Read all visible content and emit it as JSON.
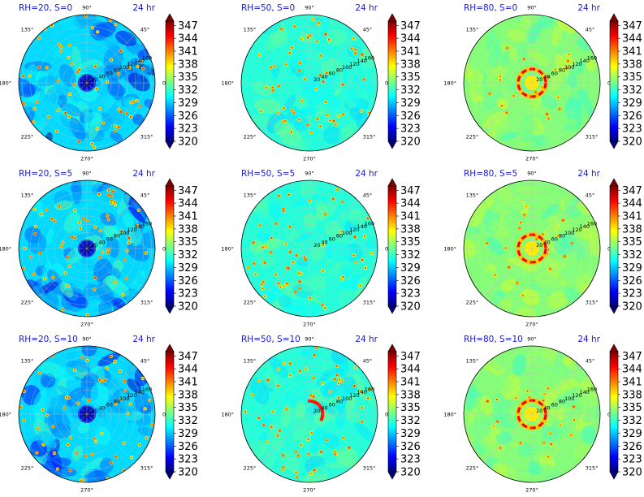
{
  "chart_data": [
    {
      "type": "heatmap",
      "projection": "polar",
      "title": "RH=20, S=0",
      "time_label": "24 hr",
      "rh": 20,
      "s": 0,
      "center_anomaly": "cold"
    },
    {
      "type": "heatmap",
      "projection": "polar",
      "title": "RH=50, S=0",
      "time_label": "24 hr",
      "rh": 50,
      "s": 0,
      "center_anomaly": "none"
    },
    {
      "type": "heatmap",
      "projection": "polar",
      "title": "RH=80, S=0",
      "time_label": "24 hr",
      "rh": 80,
      "s": 0,
      "center_anomaly": "warm ring"
    },
    {
      "type": "heatmap",
      "projection": "polar",
      "title": "RH=20, S=5",
      "time_label": "24 hr",
      "rh": 20,
      "s": 5,
      "center_anomaly": "cold"
    },
    {
      "type": "heatmap",
      "projection": "polar",
      "title": "RH=50, S=5",
      "time_label": "24 hr",
      "rh": 50,
      "s": 5,
      "center_anomaly": "none"
    },
    {
      "type": "heatmap",
      "projection": "polar",
      "title": "RH=80, S=5",
      "time_label": "24 hr",
      "rh": 80,
      "s": 5,
      "center_anomaly": "warm ring"
    },
    {
      "type": "heatmap",
      "projection": "polar",
      "title": "RH=20, S=10",
      "time_label": "24 hr",
      "rh": 20,
      "s": 10,
      "center_anomaly": "cold"
    },
    {
      "type": "heatmap",
      "projection": "polar",
      "title": "RH=50, S=10",
      "time_label": "24 hr",
      "rh": 50,
      "s": 10,
      "center_anomaly": "warm arc"
    },
    {
      "type": "heatmap",
      "projection": "polar",
      "title": "RH=80, S=10",
      "time_label": "24 hr",
      "rh": 80,
      "s": 10,
      "center_anomaly": "warm ring"
    }
  ],
  "angular_ticks": [
    "90°",
    "45°",
    "0°",
    "315°",
    "270°",
    "225°",
    "180°",
    "135°"
  ],
  "radial_ticks": [
    "20",
    "40",
    "60",
    "80",
    "100",
    "120",
    "140",
    "160"
  ],
  "colorbar": {
    "ticks": [
      "347",
      "344",
      "341",
      "338",
      "335",
      "332",
      "329",
      "326",
      "323",
      "320"
    ],
    "range": [
      320,
      348
    ],
    "colormap": "jet",
    "extend": "both"
  },
  "colors": {
    "title": "#1a1ad6",
    "jet_stops": [
      "#00007f",
      "#0000ff",
      "#007fff",
      "#00ffff",
      "#7fff7f",
      "#ffff00",
      "#ff7f00",
      "#ff0000",
      "#7f0000"
    ]
  }
}
